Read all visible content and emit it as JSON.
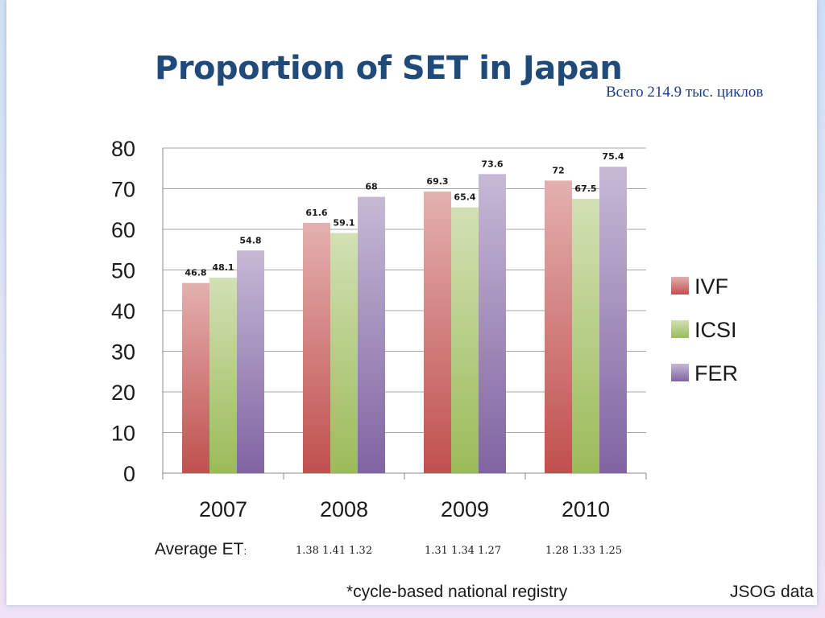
{
  "slide": {
    "subtitle": "Всего 214.9 тыс. циклов",
    "avg_et_label": "Average ET",
    "avg_et_suffix": ":",
    "avg_et_values": [
      "1.38 1.41 1.32",
      "1.31 1.34 1.27",
      "1.28 1.33 1.25"
    ],
    "footnote": "*cycle-based national registry",
    "source": "JSOG data"
  },
  "chart_data": {
    "type": "bar",
    "title": "Proportion of SET in Japan",
    "categories": [
      "2007",
      "2008",
      "2009",
      "2010"
    ],
    "series": [
      {
        "name": "IVF",
        "values": [
          46.8,
          61.6,
          69.3,
          72
        ],
        "color": "#c0504d"
      },
      {
        "name": "ICSI",
        "values": [
          48.1,
          59.1,
          65.4,
          67.5
        ],
        "color": "#9bbb59"
      },
      {
        "name": "FER",
        "values": [
          54.8,
          68,
          73.6,
          75.4
        ],
        "color": "#8064a2"
      }
    ],
    "ylim": [
      0,
      80
    ],
    "yticks": [
      0,
      10,
      20,
      30,
      40,
      50,
      60,
      70,
      80
    ],
    "xlabel": "",
    "ylabel": "",
    "grid": true,
    "legend": "right"
  }
}
